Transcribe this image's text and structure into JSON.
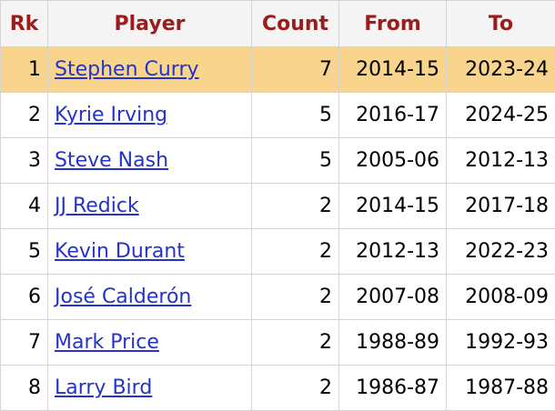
{
  "table": {
    "header": [
      "Rk",
      "Player",
      "Count",
      "From",
      "To"
    ],
    "rows": [
      [
        1,
        "Stephen Curry",
        7,
        "2014-15",
        "2023-24"
      ],
      [
        2,
        "Kyrie Irving",
        5,
        "2016-17",
        "2024-25"
      ],
      [
        3,
        "Steve Nash",
        5,
        "2005-06",
        "2012-13"
      ],
      [
        4,
        "JJ Redick",
        2,
        "2014-15",
        "2017-18"
      ],
      [
        5,
        "Kevin Durant",
        2,
        "2012-13",
        "2022-23"
      ],
      [
        6,
        "José Calderón",
        2,
        "2007-08",
        "2008-09"
      ],
      [
        7,
        "Mark Price",
        2,
        "1988-89",
        "1992-93"
      ],
      [
        8,
        "Larry Bird",
        2,
        "1986-87",
        "1987-88"
      ]
    ]
  }
}
